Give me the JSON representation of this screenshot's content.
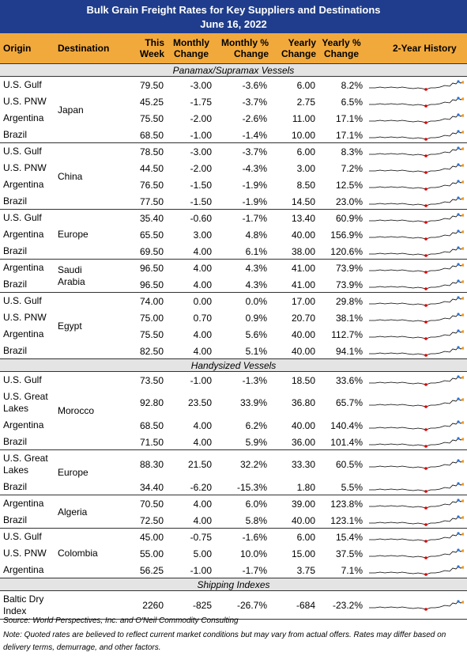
{
  "title": "Bulk Grain Freight Rates for Key Suppliers and Destinations",
  "subtitle": "June 16, 2022",
  "columns": [
    "Origin",
    "Destination",
    "This Week",
    "Monthly Change",
    "Monthly % Change",
    "Yearly Change",
    "Yearly % Change",
    "2-Year History"
  ],
  "sections": [
    {
      "title": "Panamax/Supramax Vessels",
      "groups": [
        {
          "destination": "Japan",
          "rows": [
            {
              "origin": "U.S. Gulf",
              "values": [
                "79.50",
                "-3.00",
                "-3.6%",
                "6.00",
                "8.2%"
              ]
            },
            {
              "origin": "U.S. PNW",
              "values": [
                "45.25",
                "-1.75",
                "-3.7%",
                "2.75",
                "6.5%"
              ]
            },
            {
              "origin": "Argentina",
              "values": [
                "75.50",
                "-2.00",
                "-2.6%",
                "11.00",
                "17.1%"
              ]
            },
            {
              "origin": "Brazil",
              "values": [
                "68.50",
                "-1.00",
                "-1.4%",
                "10.00",
                "17.1%"
              ]
            }
          ]
        },
        {
          "destination": "China",
          "rows": [
            {
              "origin": "U.S. Gulf",
              "values": [
                "78.50",
                "-3.00",
                "-3.7%",
                "6.00",
                "8.3%"
              ]
            },
            {
              "origin": "U.S. PNW",
              "values": [
                "44.50",
                "-2.00",
                "-4.3%",
                "3.00",
                "7.2%"
              ]
            },
            {
              "origin": "Argentina",
              "values": [
                "76.50",
                "-1.50",
                "-1.9%",
                "8.50",
                "12.5%"
              ]
            },
            {
              "origin": "Brazil",
              "values": [
                "77.50",
                "-1.50",
                "-1.9%",
                "14.50",
                "23.0%"
              ]
            }
          ]
        },
        {
          "destination": "Europe",
          "rows": [
            {
              "origin": "U.S. Gulf",
              "values": [
                "35.40",
                "-0.60",
                "-1.7%",
                "13.40",
                "60.9%"
              ]
            },
            {
              "origin": "Argentina",
              "values": [
                "65.50",
                "3.00",
                "4.8%",
                "40.00",
                "156.9%"
              ]
            },
            {
              "origin": "Brazil",
              "values": [
                "69.50",
                "4.00",
                "6.1%",
                "38.00",
                "120.6%"
              ]
            }
          ]
        },
        {
          "destination": "Saudi Arabia",
          "rows": [
            {
              "origin": "Argentina",
              "values": [
                "96.50",
                "4.00",
                "4.3%",
                "41.00",
                "73.9%"
              ]
            },
            {
              "origin": "Brazil",
              "values": [
                "96.50",
                "4.00",
                "4.3%",
                "41.00",
                "73.9%"
              ]
            }
          ]
        },
        {
          "destination": "Egypt",
          "rows": [
            {
              "origin": "U.S. Gulf",
              "values": [
                "74.00",
                "0.00",
                "0.0%",
                "17.00",
                "29.8%"
              ]
            },
            {
              "origin": "U.S. PNW",
              "values": [
                "75.00",
                "0.70",
                "0.9%",
                "20.70",
                "38.1%"
              ]
            },
            {
              "origin": "Argentina",
              "values": [
                "75.50",
                "4.00",
                "5.6%",
                "40.00",
                "112.7%"
              ]
            },
            {
              "origin": "Brazil",
              "values": [
                "82.50",
                "4.00",
                "5.1%",
                "40.00",
                "94.1%"
              ]
            }
          ]
        }
      ]
    },
    {
      "title": "Handysized Vessels",
      "groups": [
        {
          "destination": "Morocco",
          "rows": [
            {
              "origin": "U.S. Gulf",
              "values": [
                "73.50",
                "-1.00",
                "-1.3%",
                "18.50",
                "33.6%"
              ]
            },
            {
              "origin": "U.S. Great Lakes",
              "values": [
                "92.80",
                "23.50",
                "33.9%",
                "36.80",
                "65.7%"
              ]
            },
            {
              "origin": "Argentina",
              "values": [
                "68.50",
                "4.00",
                "6.2%",
                "40.00",
                "140.4%"
              ]
            },
            {
              "origin": "Brazil",
              "values": [
                "71.50",
                "4.00",
                "5.9%",
                "36.00",
                "101.4%"
              ]
            }
          ]
        },
        {
          "destination": "Europe",
          "rows": [
            {
              "origin": "U.S. Great Lakes",
              "values": [
                "88.30",
                "21.50",
                "32.2%",
                "33.30",
                "60.5%"
              ]
            },
            {
              "origin": "Brazil",
              "values": [
                "34.40",
                "-6.20",
                "-15.3%",
                "1.80",
                "5.5%"
              ]
            }
          ]
        },
        {
          "destination": "Algeria",
          "rows": [
            {
              "origin": "Argentina",
              "values": [
                "70.50",
                "4.00",
                "6.0%",
                "39.00",
                "123.8%"
              ]
            },
            {
              "origin": "Brazil",
              "values": [
                "72.50",
                "4.00",
                "5.8%",
                "40.00",
                "123.1%"
              ]
            }
          ]
        },
        {
          "destination": "Colombia",
          "rows": [
            {
              "origin": "U.S. Gulf",
              "values": [
                "45.00",
                "-0.75",
                "-1.6%",
                "6.00",
                "15.4%"
              ]
            },
            {
              "origin": "U.S. PNW",
              "values": [
                "55.00",
                "5.00",
                "10.0%",
                "15.00",
                "37.5%"
              ]
            },
            {
              "origin": "Argentina",
              "values": [
                "56.25",
                "-1.00",
                "-1.7%",
                "3.75",
                "7.1%"
              ]
            }
          ]
        }
      ]
    },
    {
      "title": "Shipping Indexes",
      "groups": [
        {
          "rows": [
            {
              "origin": "Baltic Dry Index",
              "values": [
                "2260",
                "-825",
                "-26.7%",
                "-684",
                "-23.2%"
              ]
            }
          ]
        }
      ]
    }
  ],
  "source": "Source: World Perspectives, Inc. and O'Neil Commodity Consulting",
  "note": "Note: Quoted rates are believed to reflect current market conditions but may vary from actual offers. Rates may differ based on delivery terms, demurrage, and other factors."
}
